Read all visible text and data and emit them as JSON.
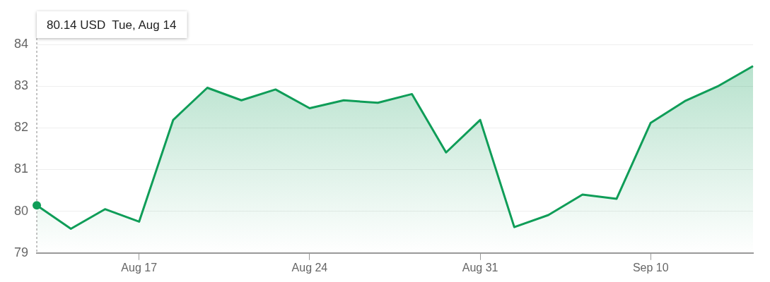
{
  "chart_data": {
    "type": "area",
    "categories": [
      null,
      null,
      null,
      "Aug 17",
      null,
      null,
      null,
      null,
      "Aug 24",
      null,
      null,
      null,
      null,
      "Aug 31",
      null,
      null,
      null,
      null,
      "Sep 10",
      null,
      null,
      null
    ],
    "series": [
      {
        "color": "#0f9d58",
        "values": [
          80.14,
          79.58,
          80.05,
          79.75,
          82.19,
          82.96,
          82.66,
          82.92,
          82.47,
          82.66,
          82.6,
          82.81,
          81.41,
          82.19,
          79.62,
          79.91,
          80.4,
          80.3,
          82.12,
          82.64,
          83.01,
          83.48
        ]
      }
    ],
    "ylim": [
      79,
      84
    ],
    "yticks": [
      79,
      80,
      81,
      82,
      83,
      84
    ],
    "grid": "y",
    "legend": false,
    "annotations": [
      "80.14 USD  Tue, Aug 14"
    ]
  }
}
